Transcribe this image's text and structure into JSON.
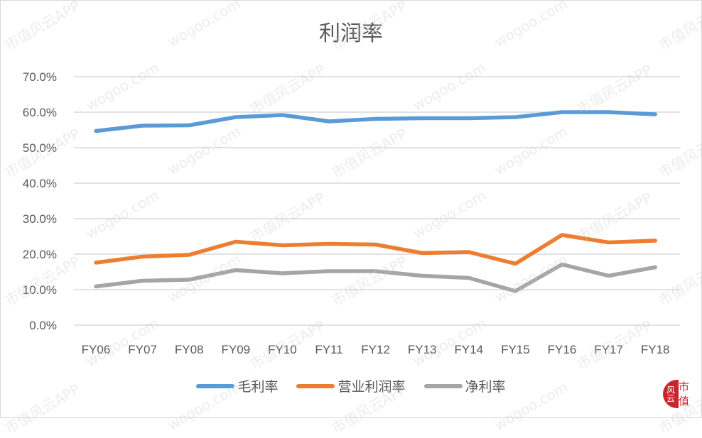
{
  "chart_data": {
    "type": "line",
    "title": "利润率",
    "xlabel": "",
    "ylabel": "",
    "ylim": [
      0,
      70
    ],
    "y_ticks": [
      "0.0%",
      "10.0%",
      "20.0%",
      "30.0%",
      "40.0%",
      "50.0%",
      "60.0%",
      "70.0%"
    ],
    "grid": true,
    "legend_position": "bottom",
    "categories": [
      "FY06",
      "FY07",
      "FY08",
      "FY09",
      "FY10",
      "FY11",
      "FY12",
      "FY13",
      "FY14",
      "FY15",
      "FY16",
      "FY17",
      "FY18"
    ],
    "series": [
      {
        "name": "毛利率",
        "color": "#5b9bd5",
        "values": [
          54.7,
          56.2,
          56.3,
          58.6,
          59.2,
          57.4,
          58.1,
          58.3,
          58.3,
          58.6,
          60.0,
          60.0,
          59.4
        ]
      },
      {
        "name": "营业利润率",
        "color": "#ed7d31",
        "values": [
          17.6,
          19.3,
          19.8,
          23.5,
          22.5,
          22.9,
          22.7,
          20.3,
          20.6,
          17.3,
          25.4,
          23.3,
          23.8
        ]
      },
      {
        "name": "净利率",
        "color": "#a5a5a5",
        "values": [
          10.9,
          12.5,
          12.8,
          15.5,
          14.6,
          15.2,
          15.2,
          13.9,
          13.3,
          9.6,
          17.1,
          13.9,
          16.3
        ]
      }
    ]
  },
  "watermark": {
    "text_app": "市值风云APP",
    "text_site": "wogoo.com"
  },
  "logo": {
    "left_text": "风云",
    "right_text": "市值"
  }
}
